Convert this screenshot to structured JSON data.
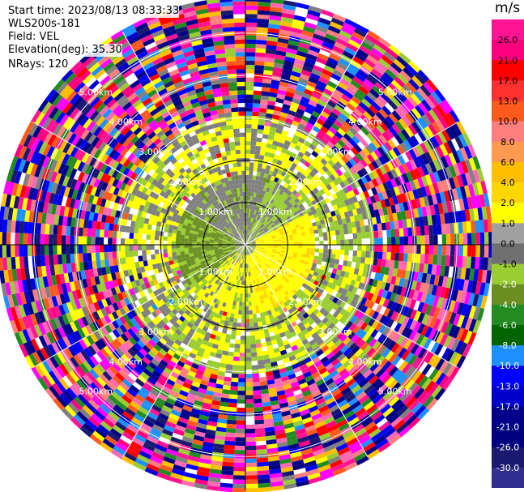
{
  "header": {
    "start_time": "Start time: 2023/08/13 08:33:33",
    "instrument": "WLS200s-181",
    "field": "Field: VEL",
    "elevation": "Elevation(deg): 35.30",
    "nrays": "NRays: 120"
  },
  "chart_data": {
    "type": "heatmap",
    "projection": "polar-ppi",
    "field": "VEL",
    "units": "m/s",
    "elevation_deg": 35.3,
    "n_rays": 120,
    "range_rings_km": [
      1.0,
      2.0,
      3.0,
      4.0,
      5.0
    ],
    "ring_labels": [
      "1.00km",
      "2.00km",
      "3.00km",
      "4.00km",
      "5.00km"
    ],
    "max_range_km": 5.8,
    "colorbar": {
      "ticks": [
        "26.0",
        "21.0",
        "17.0",
        "13.0",
        "10.0",
        "8.0",
        "6.0",
        "4.0",
        "2.0",
        "1.0",
        "0.0",
        "-1.0",
        "-2.0",
        "-4.0",
        "-6.0",
        "-8.0",
        "-10.0",
        "-13.0",
        "-17.0",
        "-21.0",
        "-26.0",
        "-30.0"
      ],
      "colors": [
        "#ff1493",
        "#ff0080",
        "#ff0000",
        "#ff3030",
        "#ff5a1e",
        "#ff7f7f",
        "#ff9a50",
        "#ffbf00",
        "#ffd700",
        "#ffff00",
        "#a0a0a0",
        "#707070",
        "#9acd32",
        "#6b8e23",
        "#228b22",
        "#006400",
        "#1e90ff",
        "#0000ff",
        "#0000cd",
        "#00008b",
        "#000080",
        "#191970",
        "#2f2f8f"
      ]
    },
    "regions": [
      {
        "range_km": [
          0.0,
          0.6
        ],
        "dominant": "near-zero grey/green"
      },
      {
        "range_km": [
          0.6,
          1.6
        ],
        "dominant": "olive green west, yellow east, grey north"
      },
      {
        "range_km": [
          1.6,
          3.0
        ],
        "dominant": "yellow and green ring with grey patches"
      },
      {
        "range_km": [
          3.0,
          5.8
        ],
        "dominant": "noisy mixed high-magnitude colors"
      }
    ]
  }
}
